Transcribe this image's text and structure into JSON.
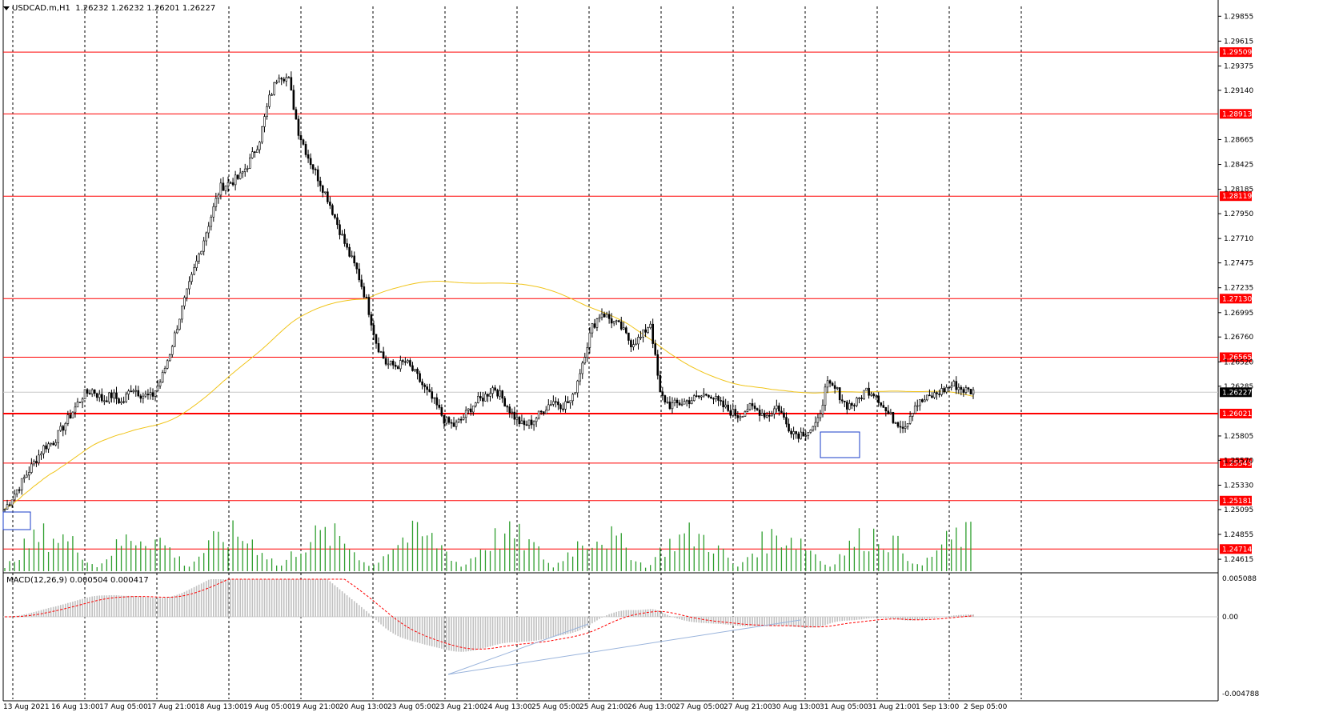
{
  "header": {
    "symbol": "USDCAD.m,H1",
    "ohlc": "1.26232 1.26232 1.26201 1.26227"
  },
  "macd_panel": {
    "label": "MACD(12,26,9) 0.000504 0.000417",
    "axis_labels": [
      "0.005088",
      "0.00",
      "-0.004788"
    ]
  },
  "colors": {
    "candle": "#000000",
    "volume": "#2e9e2e",
    "ma": "#f0c419",
    "level_line": "#ff0000",
    "level_tag": "#ff0000",
    "grid": "#000000",
    "box": "#1a3cc8",
    "macd_hist": "#c0c0c0",
    "macd_signal": "#ff0000",
    "trendline": "#9ab4dc"
  },
  "chart_data": {
    "type": "candlestick",
    "symbol": "USDCAD.m",
    "timeframe": "H1",
    "ylim": [
      1.245,
      1.2995
    ],
    "y_ticks": [
      "1.29855",
      "1.29615",
      "1.29375",
      "1.29140",
      "1.28665",
      "1.28425",
      "1.28185",
      "1.27950",
      "1.27710",
      "1.27475",
      "1.27235",
      "1.26995",
      "1.26760",
      "1.26520",
      "1.26285",
      "1.25805",
      "1.25570",
      "1.25330",
      "1.25095",
      "1.24855",
      "1.24615"
    ],
    "x_ticks": [
      "13 Aug 2021",
      "16 Aug 13:00",
      "17 Aug 05:00",
      "17 Aug 21:00",
      "18 Aug 13:00",
      "19 Aug 05:00",
      "19 Aug 21:00",
      "20 Aug 13:00",
      "23 Aug 05:00",
      "23 Aug 21:00",
      "24 Aug 13:00",
      "25 Aug 05:00",
      "25 Aug 21:00",
      "26 Aug 13:00",
      "27 Aug 05:00",
      "27 Aug 21:00",
      "30 Aug 13:00",
      "31 Aug 05:00",
      "31 Aug 21:00",
      "1 Sep 13:00",
      "2 Sep 05:00"
    ],
    "price_levels": [
      "1.29509",
      "1.28913",
      "1.28119",
      "1.27130",
      "1.26565",
      "1.26021",
      "1.25543",
      "1.25181",
      "1.24714"
    ],
    "current_price": "1.26227",
    "close_path": [
      [
        0,
        1.251
      ],
      [
        1,
        1.2525
      ],
      [
        2,
        1.254
      ],
      [
        3,
        1.2555
      ],
      [
        4,
        1.257
      ],
      [
        5,
        1.2575
      ],
      [
        6,
        1.259
      ],
      [
        7,
        1.2605
      ],
      [
        8,
        1.262
      ],
      [
        9,
        1.2625
      ],
      [
        10,
        1.2615
      ],
      [
        11,
        1.262
      ],
      [
        12,
        1.2612
      ],
      [
        13,
        1.2628
      ],
      [
        14,
        1.262
      ],
      [
        15,
        1.2618
      ],
      [
        16,
        1.2635
      ],
      [
        17,
        1.2665
      ],
      [
        18,
        1.27
      ],
      [
        19,
        1.273
      ],
      [
        20,
        1.276
      ],
      [
        21,
        1.279
      ],
      [
        22,
        1.282
      ],
      [
        23,
        1.2825
      ],
      [
        24,
        1.283
      ],
      [
        25,
        1.2845
      ],
      [
        26,
        1.2865
      ],
      [
        27,
        1.2905
      ],
      [
        28,
        1.293
      ],
      [
        29,
        1.2925
      ],
      [
        30,
        1.2875
      ],
      [
        31,
        1.285
      ],
      [
        32,
        1.283
      ],
      [
        33,
        1.281
      ],
      [
        34,
        1.2785
      ],
      [
        35,
        1.276
      ],
      [
        36,
        1.274
      ],
      [
        37,
        1.271
      ],
      [
        38,
        1.267
      ],
      [
        39,
        1.265
      ],
      [
        40,
        1.2648
      ],
      [
        41,
        1.2652
      ],
      [
        42,
        1.264
      ],
      [
        43,
        1.2625
      ],
      [
        44,
        1.2612
      ],
      [
        45,
        1.2595
      ],
      [
        46,
        1.259
      ],
      [
        47,
        1.26
      ],
      [
        48,
        1.2612
      ],
      [
        49,
        1.2618
      ],
      [
        50,
        1.2628
      ],
      [
        51,
        1.2615
      ],
      [
        52,
        1.26
      ],
      [
        53,
        1.259
      ],
      [
        54,
        1.2595
      ],
      [
        55,
        1.2605
      ],
      [
        56,
        1.2615
      ],
      [
        57,
        1.261
      ],
      [
        58,
        1.2615
      ],
      [
        59,
        1.265
      ],
      [
        60,
        1.2685
      ],
      [
        61,
        1.27
      ],
      [
        62,
        1.2692
      ],
      [
        63,
        1.2685
      ],
      [
        64,
        1.267
      ],
      [
        65,
        1.2675
      ],
      [
        66,
        1.269
      ],
      [
        67,
        1.262
      ],
      [
        68,
        1.261
      ],
      [
        69,
        1.2612
      ],
      [
        70,
        1.2615
      ],
      [
        71,
        1.2618
      ],
      [
        72,
        1.2622
      ],
      [
        73,
        1.2612
      ],
      [
        74,
        1.2605
      ],
      [
        75,
        1.26
      ],
      [
        76,
        1.2608
      ],
      [
        77,
        1.2605
      ],
      [
        78,
        1.26
      ],
      [
        79,
        1.261
      ],
      [
        80,
        1.259
      ],
      [
        81,
        1.2582
      ],
      [
        82,
        1.2585
      ],
      [
        83,
        1.259
      ],
      [
        84,
        1.263
      ],
      [
        85,
        1.2625
      ],
      [
        86,
        1.261
      ],
      [
        87,
        1.2612
      ],
      [
        88,
        1.2625
      ],
      [
        89,
        1.2622
      ],
      [
        90,
        1.2605
      ],
      [
        91,
        1.2595
      ],
      [
        92,
        1.259
      ],
      [
        93,
        1.261
      ],
      [
        94,
        1.2615
      ],
      [
        95,
        1.262
      ],
      [
        96,
        1.2625
      ],
      [
        97,
        1.263
      ],
      [
        98,
        1.2625
      ],
      [
        99,
        1.2623
      ]
    ],
    "series": [
      {
        "name": "MACD(12,26,9)",
        "last_values": [
          0.000504,
          0.000417
        ]
      }
    ]
  }
}
